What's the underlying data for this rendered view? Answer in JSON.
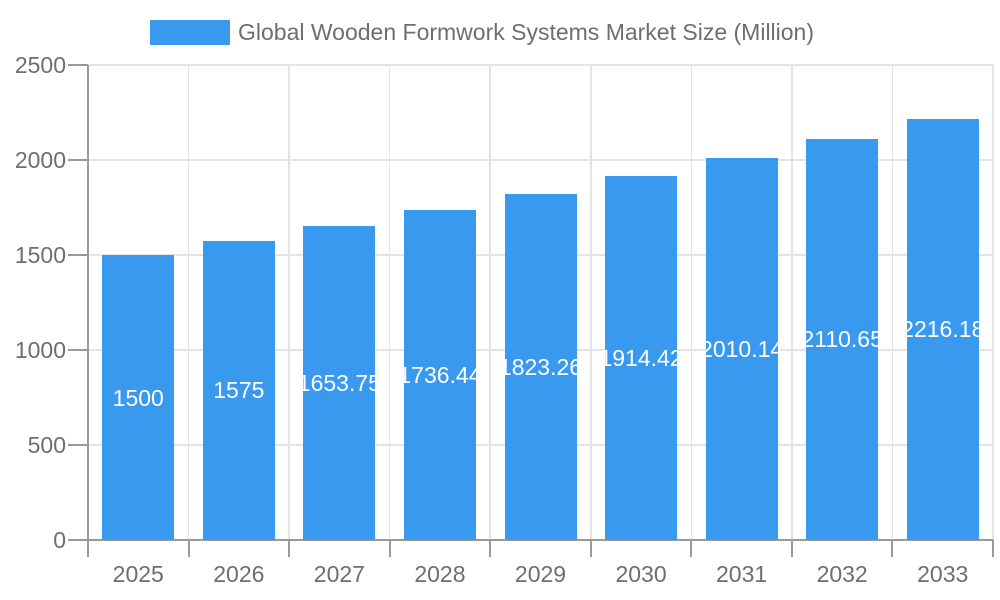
{
  "chart_data": {
    "type": "bar",
    "title": "Global Wooden Formwork Systems Market Size (Million)",
    "categories": [
      "2025",
      "2026",
      "2027",
      "2028",
      "2029",
      "2030",
      "2031",
      "2032",
      "2033"
    ],
    "values": [
      1500,
      1575,
      1653.75,
      1736.44,
      1823.26,
      1914.42,
      2010.14,
      2110.65,
      2216.18
    ],
    "bar_labels": [
      "1500",
      "1575",
      "1653.75",
      "1736.44",
      "1823.26",
      "1914.42",
      "2010.14",
      "2110.65",
      "2216.18"
    ],
    "y_ticks": [
      0,
      500,
      1000,
      1500,
      2000,
      2500
    ],
    "y_tick_labels": [
      "0",
      "500",
      "1000",
      "1500",
      "2000",
      "2500"
    ],
    "ylim": [
      0,
      2500
    ],
    "xlabel": "",
    "ylabel": "",
    "grid": true,
    "legend_position": "top",
    "bar_label_position": "inside-center",
    "series": [
      {
        "name": "Global Wooden Formwork Systems Market Size (Million)",
        "values": [
          1500,
          1575,
          1653.75,
          1736.44,
          1823.26,
          1914.42,
          2010.14,
          2110.65,
          2216.18
        ]
      }
    ]
  },
  "legend": {
    "label": "Global Wooden Formwork Systems Market Size (Million)"
  },
  "colors": {
    "bar": "#3999EE",
    "axis": "#999999",
    "grid": "#E4E4E4",
    "text": "#6E6E6E",
    "bar_label": "#FFFFFF",
    "background": "#FFFFFF"
  }
}
